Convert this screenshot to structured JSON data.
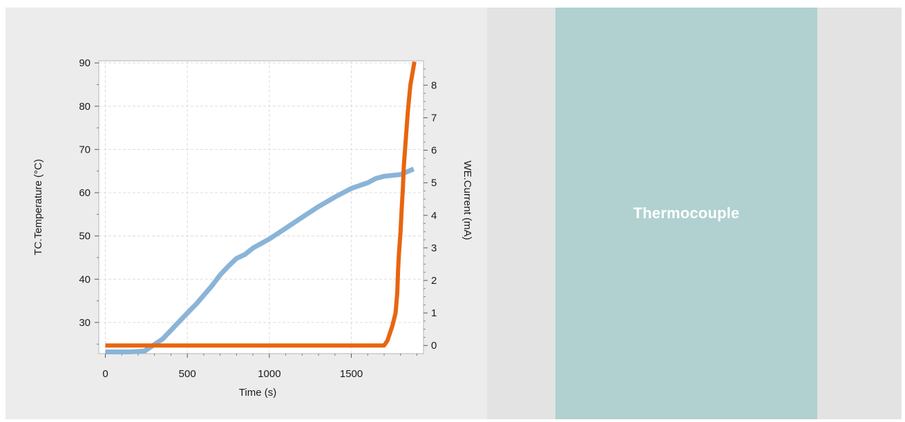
{
  "chart_data": {
    "type": "line",
    "xlabel": "Time (s)",
    "ylabel_left": "TC.Temperature (°C)",
    "ylabel_right": "WE.Current (mA)",
    "xlim": [
      -40,
      1940
    ],
    "ylim_left": [
      22.8,
      90.5
    ],
    "ylim_right": [
      -0.25,
      8.75
    ],
    "x_ticks": [
      0,
      500,
      1000,
      1500
    ],
    "y_left_ticks": [
      30,
      40,
      50,
      60,
      70,
      80,
      90
    ],
    "y_right_ticks": [
      0,
      1,
      2,
      3,
      4,
      5,
      6,
      7,
      8
    ],
    "grid": true,
    "series": [
      {
        "name": "",
        "axis": "left",
        "color": "#8ab4d8",
        "x": [
          0,
          150,
          240,
          350,
          450,
          560,
          650,
          700,
          750,
          800,
          850,
          900,
          1000,
          1100,
          1200,
          1300,
          1400,
          1500,
          1600,
          1650,
          1700,
          1800,
          1880
        ],
        "y": [
          23.2,
          23.2,
          23.4,
          26.2,
          30.2,
          34.5,
          38.5,
          41.0,
          43.0,
          44.8,
          45.7,
          47.2,
          49.3,
          51.8,
          54.3,
          56.8,
          59.0,
          61.0,
          62.3,
          63.3,
          63.8,
          64.2,
          65.5
        ]
      },
      {
        "name": "",
        "axis": "right",
        "color": "#e8650f",
        "x": [
          0,
          500,
          1000,
          1500,
          1700,
          1720,
          1750,
          1770,
          1780,
          1785,
          1790,
          1800,
          1808,
          1814,
          1820,
          1830,
          1845,
          1860,
          1872,
          1885
        ],
        "y": [
          0,
          0,
          0,
          0,
          0,
          0.15,
          0.6,
          1.0,
          1.6,
          2.3,
          2.8,
          3.5,
          4.3,
          4.8,
          5.5,
          6.2,
          7.2,
          8.0,
          8.35,
          8.72
        ]
      }
    ]
  },
  "right_panel": {
    "label": "Thermocouple"
  }
}
